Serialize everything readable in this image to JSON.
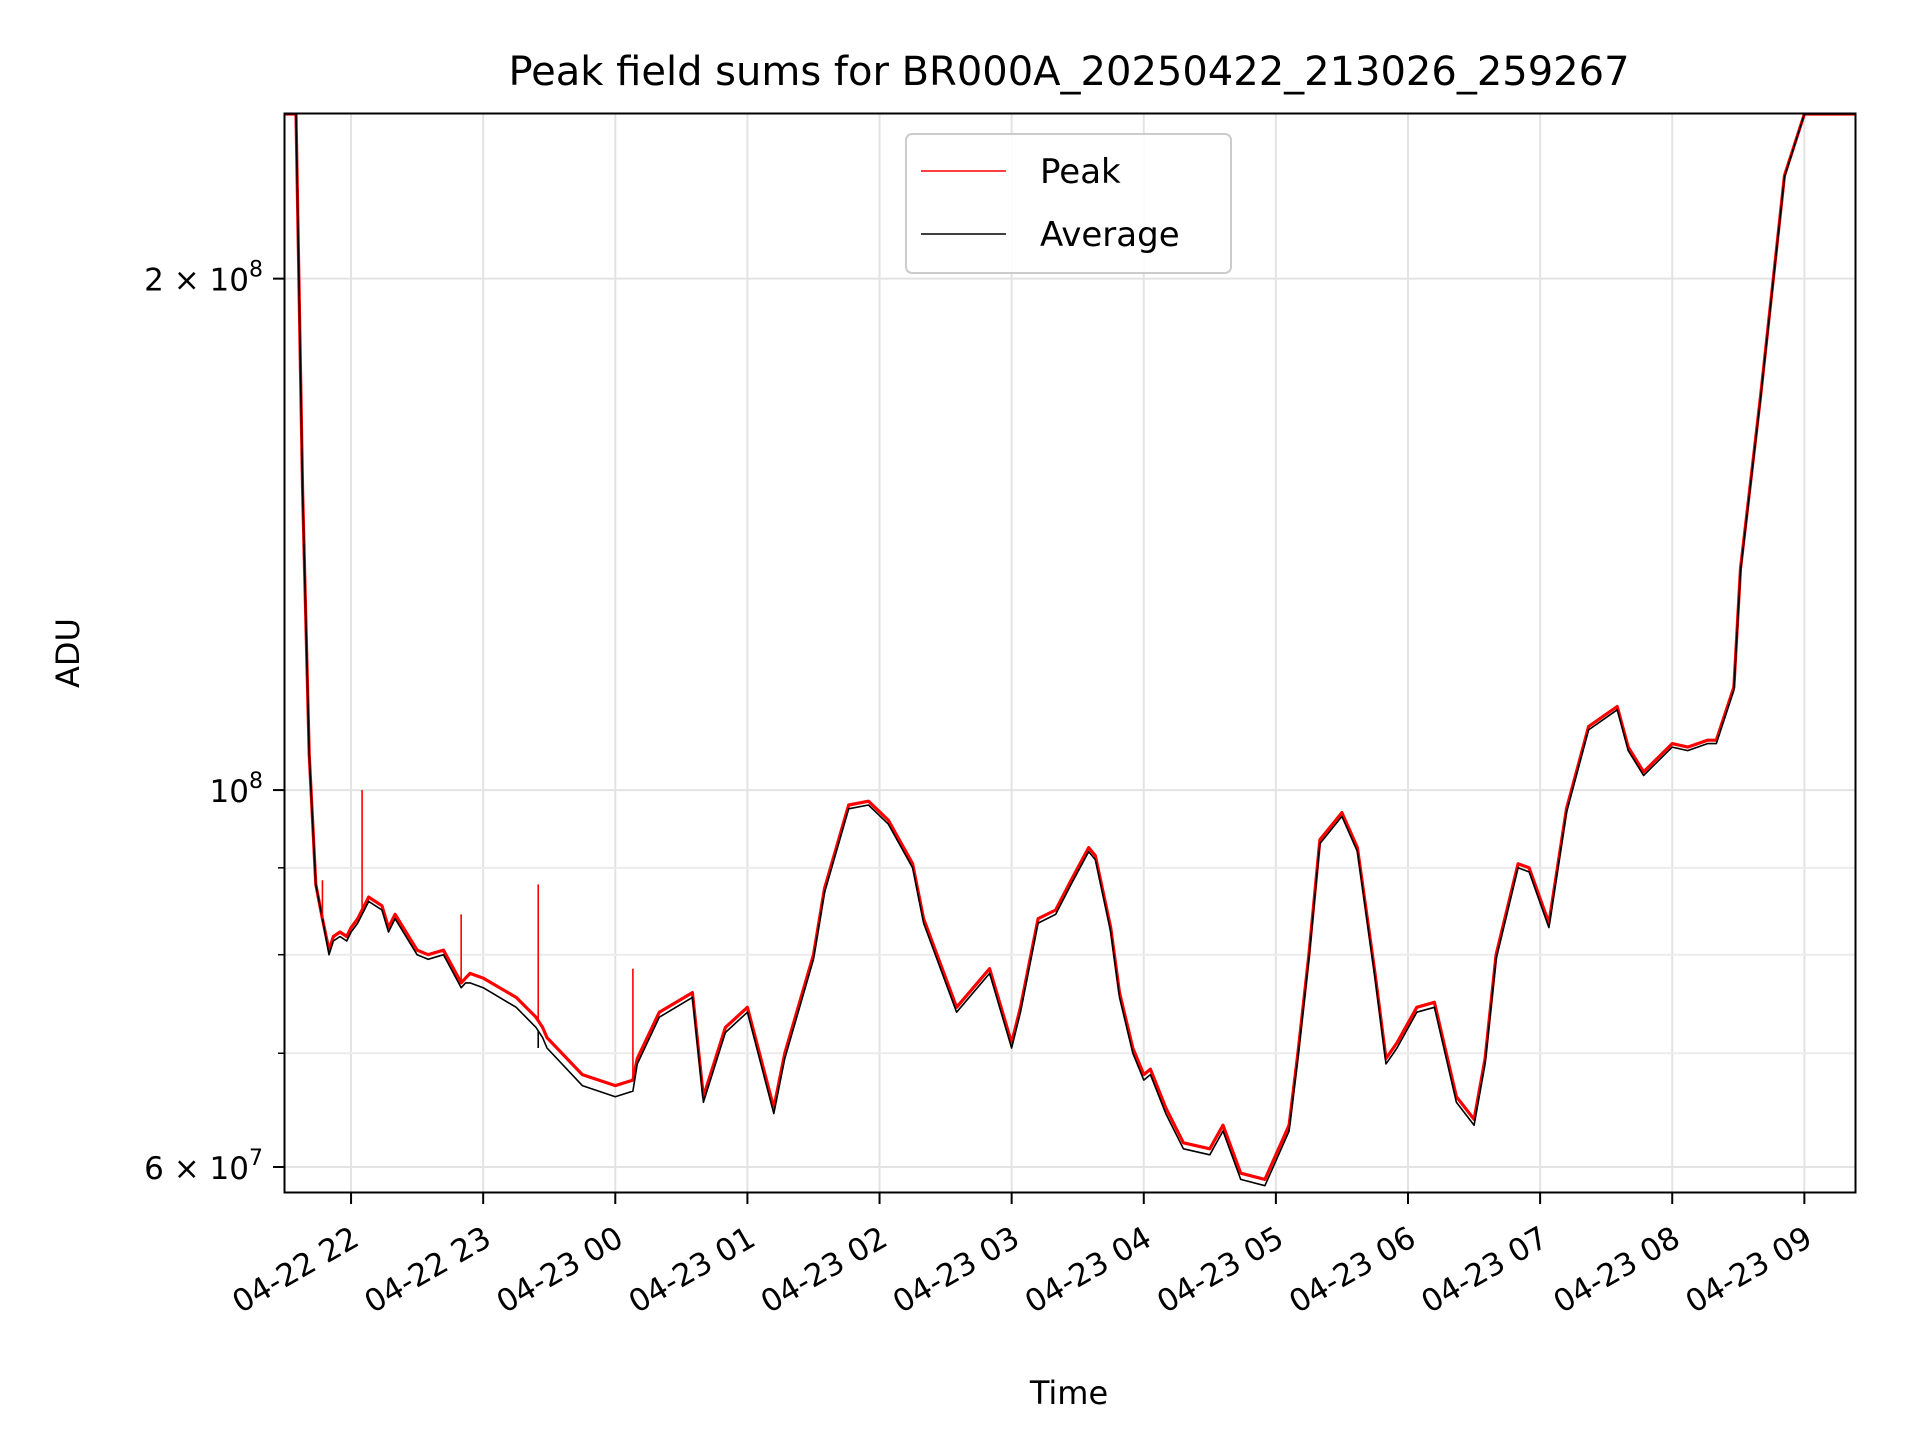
{
  "chart_data": {
    "type": "line",
    "title": "Peak field sums for BR000A_20250422_213026_259267",
    "xlabel": "Time",
    "ylabel": "ADU",
    "yscale": "log",
    "ylim": [
      58000000,
      250000000
    ],
    "xlim": [
      "2025-04-22 21:30",
      "2025-04-23 09:23"
    ],
    "grid": true,
    "legend_position": "upper center",
    "x_tick_labels": [
      "04-22 22",
      "04-22 23",
      "04-23 00",
      "04-23 01",
      "04-23 02",
      "04-23 03",
      "04-23 04",
      "04-23 05",
      "04-23 06",
      "04-23 07",
      "04-23 08",
      "04-23 09"
    ],
    "x_ticks": [
      "2025-04-22 22:00",
      "2025-04-22 23:00",
      "2025-04-23 00:00",
      "2025-04-23 01:00",
      "2025-04-23 02:00",
      "2025-04-23 03:00",
      "2025-04-23 04:00",
      "2025-04-23 05:00",
      "2025-04-23 06:00",
      "2025-04-23 07:00",
      "2025-04-23 08:00",
      "2025-04-23 09:00"
    ],
    "y_ticks": [
      {
        "value": 200000000,
        "mantissa": "2",
        "exponent": "8"
      },
      {
        "value": 100000000,
        "mantissa": "",
        "exponent": "8"
      },
      {
        "value": 60000000,
        "mantissa": "6",
        "exponent": "7"
      }
    ],
    "y_minor_ticks": [
      70000000,
      80000000,
      90000000
    ],
    "series": [
      {
        "name": "Peak",
        "color": "#ff0000",
        "x": [
          "2025-04-22 21:30",
          "2025-04-22 21:35",
          "2025-04-22 21:38",
          "2025-04-22 21:41",
          "2025-04-22 21:44",
          "2025-04-22 21:47",
          "2025-04-22 21:50",
          "2025-04-22 21:52",
          "2025-04-22 21:55",
          "2025-04-22 21:58",
          "2025-04-22 22:00",
          "2025-04-22 22:03",
          "2025-04-22 22:08",
          "2025-04-22 22:14",
          "2025-04-22 22:17",
          "2025-04-22 22:20",
          "2025-04-22 22:30",
          "2025-04-22 22:35",
          "2025-04-22 22:42",
          "2025-04-22 22:50",
          "2025-04-22 22:52",
          "2025-04-22 22:54",
          "2025-04-22 23:00",
          "2025-04-22 23:15",
          "2025-04-22 23:24",
          "2025-04-22 23:27",
          "2025-04-22 23:29",
          "2025-04-22 23:45",
          "2025-04-23 00:00",
          "2025-04-23 00:08",
          "2025-04-23 00:10",
          "2025-04-23 00:20",
          "2025-04-23 00:35",
          "2025-04-23 00:40",
          "2025-04-23 00:50",
          "2025-04-23 01:00",
          "2025-04-23 01:12",
          "2025-04-23 01:17",
          "2025-04-23 01:30",
          "2025-04-23 01:35",
          "2025-04-23 01:46",
          "2025-04-23 01:55",
          "2025-04-23 02:04",
          "2025-04-23 02:15",
          "2025-04-23 02:20",
          "2025-04-23 02:35",
          "2025-04-23 02:50",
          "2025-04-23 03:00",
          "2025-04-23 03:04",
          "2025-04-23 03:12",
          "2025-04-23 03:20",
          "2025-04-23 03:27",
          "2025-04-23 03:35",
          "2025-04-23 03:38",
          "2025-04-23 03:45",
          "2025-04-23 03:49",
          "2025-04-23 03:55",
          "2025-04-23 04:00",
          "2025-04-23 04:03",
          "2025-04-23 04:10",
          "2025-04-23 04:18",
          "2025-04-23 04:30",
          "2025-04-23 04:36",
          "2025-04-23 04:44",
          "2025-04-23 04:55",
          "2025-04-23 05:00",
          "2025-04-23 05:06",
          "2025-04-23 05:10",
          "2025-04-23 05:15",
          "2025-04-23 05:20",
          "2025-04-23 05:30",
          "2025-04-23 05:37",
          "2025-04-23 05:45",
          "2025-04-23 05:50",
          "2025-04-23 05:55",
          "2025-04-23 06:04",
          "2025-04-23 06:12",
          "2025-04-23 06:22",
          "2025-04-23 06:30",
          "2025-04-23 06:35",
          "2025-04-23 06:40",
          "2025-04-23 06:50",
          "2025-04-23 06:55",
          "2025-04-23 07:04",
          "2025-04-23 07:12",
          "2025-04-23 07:22",
          "2025-04-23 07:35",
          "2025-04-23 07:40",
          "2025-04-23 07:47",
          "2025-04-23 08:00",
          "2025-04-23 08:07",
          "2025-04-23 08:16",
          "2025-04-23 08:20",
          "2025-04-23 08:28",
          "2025-04-23 08:31",
          "2025-04-23 08:40",
          "2025-04-23 08:51",
          "2025-04-23 09:00",
          "2025-04-23 09:06",
          "2025-04-23 09:10",
          "2025-04-23 09:14",
          "2025-04-23 09:18",
          "2025-04-23 09:23"
        ],
        "y": [
          250000000,
          250000000,
          150000000,
          105000000,
          88000000,
          84000000,
          80500000,
          82000000,
          82500000,
          82000000,
          83000000,
          84000000,
          86500000,
          85500000,
          83000000,
          84500000,
          80500000,
          80000000,
          80500000,
          77000000,
          77500000,
          78000000,
          77500000,
          75500000,
          73500000,
          72500000,
          71500000,
          68000000,
          67000000,
          67500000,
          69500000,
          74000000,
          76000000,
          66000000,
          72500000,
          74500000,
          65000000,
          70000000,
          80000000,
          87500000,
          98000000,
          98500000,
          96000000,
          90500000,
          84000000,
          74500000,
          78500000,
          71000000,
          74500000,
          84000000,
          85000000,
          88500000,
          92500000,
          91500000,
          83000000,
          76000000,
          70500000,
          68000000,
          68500000,
          65000000,
          62000000,
          61500000,
          63500000,
          59500000,
          59000000,
          61000000,
          63500000,
          70000000,
          80000000,
          93500000,
          97000000,
          92500000,
          78000000,
          69500000,
          71000000,
          74500000,
          75000000,
          66000000,
          64000000,
          69500000,
          80000000,
          90500000,
          90000000,
          83500000,
          97500000,
          109000000,
          112000000,
          106000000,
          102500000,
          106500000,
          106000000,
          107000000,
          107000000,
          115000000,
          135000000,
          170000000,
          230000000,
          250000000,
          250000000,
          250000000,
          250000000,
          250000000,
          250000000
        ]
      },
      {
        "name": "Average",
        "color": "#000000",
        "x": [
          "2025-04-22 21:30",
          "2025-04-22 21:35",
          "2025-04-22 21:38",
          "2025-04-22 21:41",
          "2025-04-22 21:44",
          "2025-04-22 21:47",
          "2025-04-22 21:50",
          "2025-04-22 21:52",
          "2025-04-22 21:55",
          "2025-04-22 21:58",
          "2025-04-22 22:00",
          "2025-04-22 22:03",
          "2025-04-22 22:08",
          "2025-04-22 22:14",
          "2025-04-22 22:17",
          "2025-04-22 22:20",
          "2025-04-22 22:30",
          "2025-04-22 22:35",
          "2025-04-22 22:42",
          "2025-04-22 22:50",
          "2025-04-22 22:52",
          "2025-04-22 22:54",
          "2025-04-22 23:00",
          "2025-04-22 23:15",
          "2025-04-22 23:24",
          "2025-04-22 23:27",
          "2025-04-22 23:29",
          "2025-04-22 23:45",
          "2025-04-23 00:00",
          "2025-04-23 00:08",
          "2025-04-23 00:10",
          "2025-04-23 00:20",
          "2025-04-23 00:35",
          "2025-04-23 00:40",
          "2025-04-23 00:50",
          "2025-04-23 01:00",
          "2025-04-23 01:12",
          "2025-04-23 01:17",
          "2025-04-23 01:30",
          "2025-04-23 01:35",
          "2025-04-23 01:46",
          "2025-04-23 01:55",
          "2025-04-23 02:04",
          "2025-04-23 02:15",
          "2025-04-23 02:20",
          "2025-04-23 02:35",
          "2025-04-23 02:50",
          "2025-04-23 03:00",
          "2025-04-23 03:04",
          "2025-04-23 03:12",
          "2025-04-23 03:20",
          "2025-04-23 03:27",
          "2025-04-23 03:35",
          "2025-04-23 03:38",
          "2025-04-23 03:45",
          "2025-04-23 03:49",
          "2025-04-23 03:55",
          "2025-04-23 04:00",
          "2025-04-23 04:03",
          "2025-04-23 04:10",
          "2025-04-23 04:18",
          "2025-04-23 04:30",
          "2025-04-23 04:36",
          "2025-04-23 04:44",
          "2025-04-23 04:55",
          "2025-04-23 05:00",
          "2025-04-23 05:06",
          "2025-04-23 05:10",
          "2025-04-23 05:15",
          "2025-04-23 05:20",
          "2025-04-23 05:30",
          "2025-04-23 05:37",
          "2025-04-23 05:45",
          "2025-04-23 05:50",
          "2025-04-23 05:55",
          "2025-04-23 06:04",
          "2025-04-23 06:12",
          "2025-04-23 06:22",
          "2025-04-23 06:30",
          "2025-04-23 06:35",
          "2025-04-23 06:40",
          "2025-04-23 06:50",
          "2025-04-23 06:55",
          "2025-04-23 07:04",
          "2025-04-23 07:12",
          "2025-04-23 07:22",
          "2025-04-23 07:35",
          "2025-04-23 07:40",
          "2025-04-23 07:47",
          "2025-04-23 08:00",
          "2025-04-23 08:07",
          "2025-04-23 08:16",
          "2025-04-23 08:20",
          "2025-04-23 08:28",
          "2025-04-23 08:31",
          "2025-04-23 08:40",
          "2025-04-23 08:51",
          "2025-04-23 09:00",
          "2025-04-23 09:06",
          "2025-04-23 09:10",
          "2025-04-23 09:14",
          "2025-04-23 09:18",
          "2025-04-23 09:23"
        ],
        "y": [
          250000000,
          250000000,
          150000000,
          105000000,
          88000000,
          84000000,
          80000000,
          81500000,
          82000000,
          81500000,
          82500000,
          83500000,
          86000000,
          85000000,
          82500000,
          84000000,
          80000000,
          79500000,
          80000000,
          76500000,
          77000000,
          77000000,
          76500000,
          74500000,
          72500000,
          71500000,
          70500000,
          67000000,
          66000000,
          66500000,
          69000000,
          73500000,
          75500000,
          65500000,
          72000000,
          74000000,
          64500000,
          69500000,
          79500000,
          87000000,
          97500000,
          98000000,
          95500000,
          90000000,
          83500000,
          74000000,
          78000000,
          70500000,
          74000000,
          83500000,
          84500000,
          88000000,
          92000000,
          91000000,
          82500000,
          75500000,
          70000000,
          67500000,
          68000000,
          64500000,
          61500000,
          61000000,
          63000000,
          59000000,
          58500000,
          60500000,
          63000000,
          69500000,
          79500000,
          93000000,
          96500000,
          92000000,
          77500000,
          69000000,
          70500000,
          74000000,
          74500000,
          65500000,
          63500000,
          69000000,
          79500000,
          90000000,
          89500000,
          83000000,
          97000000,
          108500000,
          111500000,
          105500000,
          102000000,
          106000000,
          105500000,
          106500000,
          106500000,
          114500000,
          134500000,
          169500000,
          229500000,
          250000000,
          250000000,
          250000000,
          250000000,
          250000000,
          250000000
        ]
      }
    ],
    "spikes": [
      {
        "series": "Peak",
        "x": "2025-04-22 22:05",
        "y": 100000000
      },
      {
        "series": "Peak",
        "x": "2025-04-22 22:50",
        "y": 84500000
      },
      {
        "series": "Peak",
        "x": "2025-04-22 23:25",
        "y": 88000000
      },
      {
        "series": "Peak",
        "x": "2025-04-23 00:08",
        "y": 78500000
      },
      {
        "series": "Peak",
        "x": "2025-04-22 21:47",
        "y": 88500000
      },
      {
        "series": "Average",
        "x": "2025-04-22 23:25",
        "y": 70500000
      }
    ]
  }
}
